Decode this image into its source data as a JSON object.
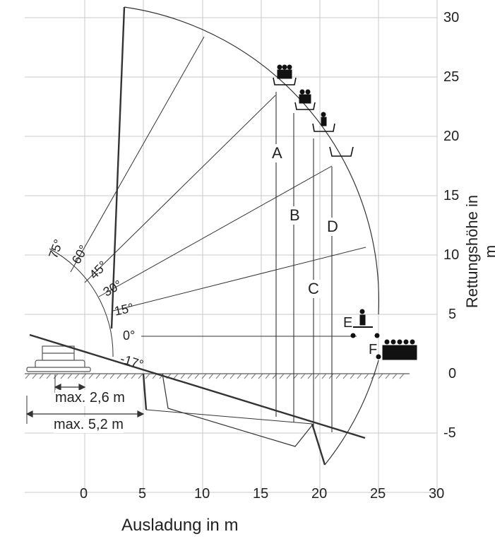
{
  "x_axis": {
    "label": "Ausladung in m",
    "ticks": [
      "0",
      "5",
      "10",
      "15",
      "20",
      "25",
      "30"
    ]
  },
  "y_axis": {
    "label": "Rettungshöhe in m",
    "ticks": [
      "30",
      "25",
      "20",
      "15",
      "10",
      "5",
      "0",
      "-5"
    ]
  },
  "angles": [
    "75°",
    "60°",
    "45°",
    "30°",
    "15°",
    "0°",
    "-17°"
  ],
  "zones": [
    "A",
    "B",
    "C",
    "D"
  ],
  "points": [
    "E",
    "F"
  ],
  "dimensions": {
    "max_short": "max. 2,6 m",
    "max_long": "max. 5,2 m"
  }
}
